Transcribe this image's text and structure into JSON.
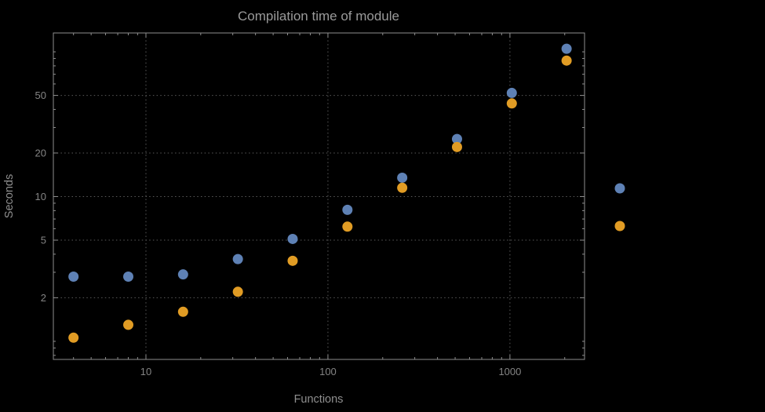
{
  "chart_data": {
    "type": "scatter",
    "scale": "log-log",
    "title": "Compilation time of module",
    "xlabel": "Functions",
    "ylabel": "Seconds",
    "x": [
      4,
      8,
      16,
      32,
      64,
      128,
      256,
      512,
      1024,
      2048
    ],
    "series": [
      {
        "name": "blue-series",
        "color": "#5E81B5",
        "values": [
          2.8,
          2.8,
          2.9,
          3.7,
          5.1,
          8.1,
          13.5,
          25,
          52,
          105
        ]
      },
      {
        "name": "orange-series",
        "color": "#E19C24",
        "values": [
          1.06,
          1.3,
          1.6,
          2.2,
          3.6,
          6.2,
          11.5,
          22,
          44,
          87
        ]
      }
    ],
    "x_ticks": [
      10,
      100,
      1000
    ],
    "y_ticks": [
      2,
      5,
      10,
      20,
      50
    ],
    "x_range": [
      3.1,
      2570
    ],
    "y_range": [
      0.75,
      135
    ],
    "grid": "dotted lines at labeled ticks",
    "legend_position": "outside right, color markers only (no visible text)"
  },
  "legend": {
    "markers": [
      {
        "name": "blue-series-marker",
        "color": "#5E81B5"
      },
      {
        "name": "orange-series-marker",
        "color": "#E19C24"
      }
    ]
  },
  "colors": {
    "background": "#000000",
    "frame": "#8E8E8E",
    "grid": "#5A5A5A",
    "title_text": "#9A9A9A",
    "axis_text": "#8F8F8F",
    "tick_text": "#848484"
  }
}
